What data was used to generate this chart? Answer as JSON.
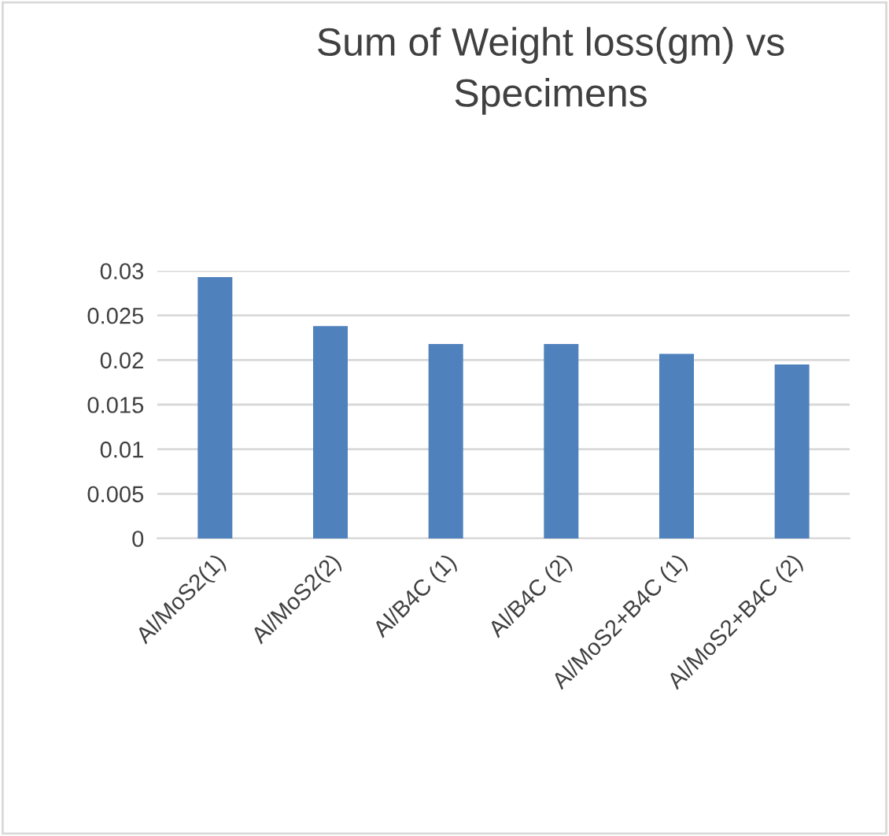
{
  "chart_data": {
    "type": "bar",
    "title": "Sum of Weight loss(gm) vs\nSpecimens",
    "categories": [
      "Al/MoS2(1)",
      "Al/MoS2(2)",
      "Al/B4C (1)",
      "Al/B4C (2)",
      "Al/MoS2+B4C (1)",
      "Al/MoS2+B4C (2)"
    ],
    "values": [
      0.0293,
      0.0238,
      0.0218,
      0.0218,
      0.0207,
      0.0195
    ],
    "color": "#4f81bd",
    "ylim": [
      0,
      0.03
    ],
    "yticks": [
      {
        "value": 0,
        "label": "0"
      },
      {
        "value": 0.005,
        "label": "0.005"
      },
      {
        "value": 0.01,
        "label": "0.01"
      },
      {
        "value": 0.015,
        "label": "0.015"
      },
      {
        "value": 0.02,
        "label": "0.02"
      },
      {
        "value": 0.025,
        "label": "0.025"
      },
      {
        "value": 0.03,
        "label": "0.03"
      }
    ],
    "grid": "y",
    "legend": false
  }
}
